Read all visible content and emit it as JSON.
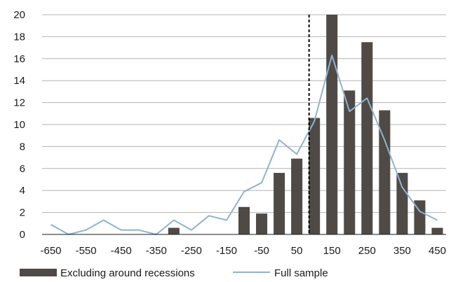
{
  "chart_data": {
    "type": "bar",
    "ylim": [
      0,
      20
    ],
    "yticks": [
      0,
      2,
      4,
      6,
      8,
      10,
      12,
      14,
      16,
      18,
      20
    ],
    "x": [
      -650,
      -600,
      -550,
      -500,
      -450,
      -400,
      -350,
      -300,
      -250,
      -200,
      -150,
      -100,
      -50,
      0,
      50,
      100,
      150,
      200,
      250,
      300,
      350,
      400,
      450
    ],
    "xticks": [
      -650,
      -550,
      -450,
      -350,
      -250,
      -150,
      -50,
      50,
      150,
      250,
      350,
      450
    ],
    "xtick_labels": [
      "-650",
      "-550",
      "-450",
      "-350",
      "-250",
      "-150",
      "-50",
      "50",
      "150",
      "250",
      "350",
      "450"
    ],
    "series": [
      {
        "name": "Excluding around recessions",
        "kind": "bar",
        "color": "#4f4a45",
        "values": [
          0,
          0,
          0,
          0,
          0,
          0,
          0,
          0.6,
          0,
          0,
          0,
          2.5,
          1.9,
          5.6,
          6.9,
          10.6,
          20,
          13.1,
          17.5,
          11.3,
          5.6,
          3.1,
          0.6
        ]
      },
      {
        "name": "Full sample",
        "kind": "line",
        "color": "#8fb3d1",
        "values": [
          0.9,
          0,
          0.4,
          1.3,
          0.4,
          0.4,
          0,
          1.3,
          0.4,
          1.7,
          1.3,
          3.9,
          4.7,
          8.6,
          7.3,
          10.3,
          16.3,
          11.2,
          12.4,
          8.6,
          4.3,
          2.1,
          1.3
        ]
      }
    ],
    "reference_line": {
      "x": 85,
      "style": "dashed",
      "color": "#000000"
    },
    "grid": "horizontal",
    "legend": "bottom-left"
  }
}
